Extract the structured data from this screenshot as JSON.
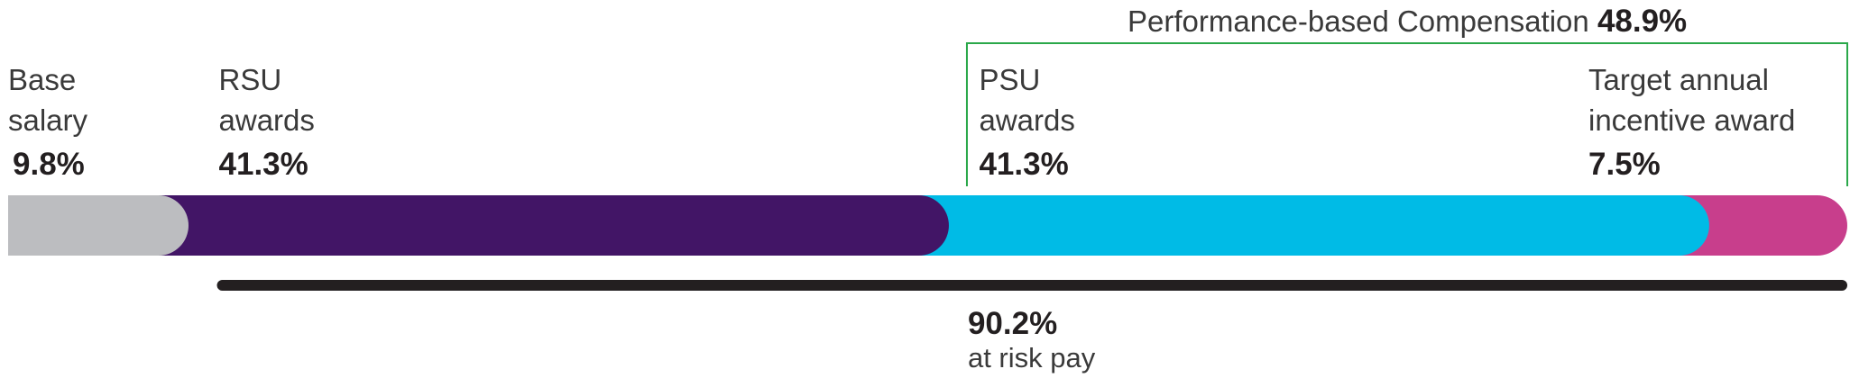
{
  "chart_data": {
    "type": "stacked-bar",
    "categories": [
      "Base salary",
      "RSU awards",
      "PSU awards",
      "Target annual incentive award"
    ],
    "values": [
      9.8,
      41.3,
      41.3,
      7.5
    ],
    "value_labels": [
      "9.8%",
      "41.3%",
      "41.3%",
      "7.5%"
    ],
    "colors": [
      "#bcbdc0",
      "#421566",
      "#00bbe6",
      "#c83e8c"
    ],
    "annotations": [
      {
        "text": "Performance-based Compensation",
        "value": 48.9,
        "value_label": "48.9%",
        "color": "#2aa84a"
      },
      {
        "text": "at risk pay",
        "value": 90.2,
        "value_label": "90.2%",
        "color": "#231f20"
      }
    ]
  }
}
